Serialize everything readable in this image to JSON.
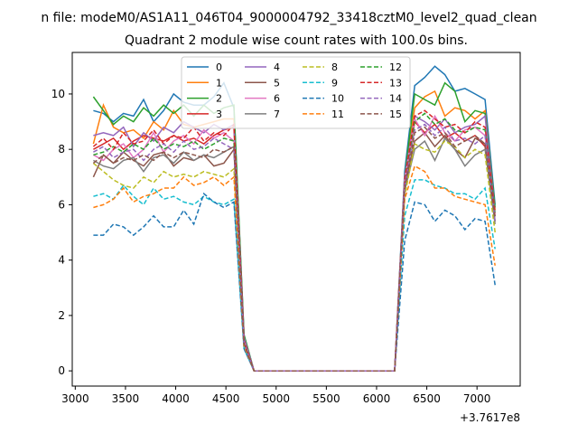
{
  "chart_data": {
    "type": "line",
    "suptitle": "n file: modeM0/AS1A11_046T04_9000004792_33418cztM0_level2_quad_clean",
    "title": "Quadrant 2 module wise count rates with 100.0s bins.",
    "xlabel": "",
    "ylabel": "",
    "x_offset_label": "+3.7617e8",
    "xlim": [
      2970,
      7430
    ],
    "ylim": [
      -0.55,
      11.5
    ],
    "x_ticks": [
      3000,
      3500,
      4000,
      4500,
      5000,
      5500,
      6000,
      6500,
      7000
    ],
    "y_ticks": [
      0,
      2,
      4,
      6,
      8,
      10
    ],
    "grid": false,
    "legend": {
      "placement": "top-center",
      "columns": 4
    },
    "x": [
      3180,
      3280,
      3380,
      3480,
      3580,
      3680,
      3780,
      3880,
      3980,
      4080,
      4180,
      4280,
      4380,
      4480,
      4580,
      4680,
      4780,
      4880,
      4980,
      5080,
      5180,
      5280,
      5380,
      5480,
      5580,
      5680,
      5780,
      5880,
      5980,
      6080,
      6180,
      6280,
      6380,
      6480,
      6580,
      6680,
      6780,
      6880,
      6980,
      7080,
      7180
    ],
    "series": [
      {
        "name": "0",
        "color": "#1f77b4",
        "dash": "solid",
        "values": [
          9.4,
          9.3,
          9.0,
          9.3,
          9.2,
          9.8,
          9.0,
          9.4,
          10.0,
          9.7,
          9.6,
          9.6,
          9.9,
          10.4,
          9.5,
          1.3,
          0,
          0,
          0,
          0,
          0,
          0,
          0,
          0,
          0,
          0,
          0,
          0,
          0,
          0,
          0,
          7.2,
          10.3,
          10.6,
          11.0,
          10.7,
          10.1,
          10.2,
          10.0,
          9.8,
          6.0
        ]
      },
      {
        "name": "1",
        "color": "#ff7f0e",
        "dash": "solid",
        "values": [
          8.2,
          9.6,
          8.8,
          8.6,
          8.7,
          8.4,
          9.0,
          8.7,
          9.4,
          8.9,
          8.8,
          8.9,
          9.0,
          9.1,
          9.1,
          1.2,
          0,
          0,
          0,
          0,
          0,
          0,
          0,
          0,
          0,
          0,
          0,
          0,
          0,
          0,
          0,
          7.0,
          9.5,
          9.9,
          10.1,
          9.2,
          9.5,
          9.4,
          9.1,
          9.4,
          5.8
        ]
      },
      {
        "name": "2",
        "color": "#2ca02c",
        "dash": "solid",
        "values": [
          9.9,
          9.4,
          8.9,
          9.2,
          9.0,
          9.5,
          9.2,
          9.6,
          9.3,
          9.6,
          9.2,
          9.6,
          9.3,
          9.5,
          9.6,
          1.3,
          0,
          0,
          0,
          0,
          0,
          0,
          0,
          0,
          0,
          0,
          0,
          0,
          0,
          0,
          0,
          7.0,
          10.0,
          9.8,
          9.6,
          10.4,
          10.1,
          9.0,
          9.4,
          9.3,
          5.9
        ]
      },
      {
        "name": "3",
        "color": "#d62728",
        "dash": "solid",
        "values": [
          8.0,
          8.2,
          8.4,
          8.0,
          8.3,
          8.5,
          8.4,
          8.3,
          8.5,
          8.3,
          8.4,
          8.2,
          8.5,
          8.7,
          8.8,
          1.1,
          0,
          0,
          0,
          0,
          0,
          0,
          0,
          0,
          0,
          0,
          0,
          0,
          0,
          0,
          0,
          6.8,
          9.0,
          8.6,
          8.9,
          8.4,
          8.6,
          8.3,
          8.5,
          8.1,
          5.6
        ]
      },
      {
        "name": "4",
        "color": "#9467bd",
        "dash": "solid",
        "values": [
          8.5,
          8.6,
          8.5,
          8.8,
          8.1,
          8.6,
          8.3,
          8.8,
          8.6,
          9.0,
          8.8,
          8.6,
          8.9,
          8.7,
          8.9,
          1.2,
          0,
          0,
          0,
          0,
          0,
          0,
          0,
          0,
          0,
          0,
          0,
          0,
          0,
          0,
          0,
          7.0,
          9.2,
          9.0,
          8.7,
          9.1,
          8.6,
          8.8,
          8.9,
          9.2,
          5.7
        ]
      },
      {
        "name": "5",
        "color": "#8c564b",
        "dash": "solid",
        "values": [
          7.0,
          7.8,
          7.5,
          7.9,
          7.6,
          7.4,
          7.8,
          7.9,
          7.4,
          7.7,
          7.6,
          7.8,
          7.4,
          7.5,
          8.0,
          1.0,
          0,
          0,
          0,
          0,
          0,
          0,
          0,
          0,
          0,
          0,
          0,
          0,
          0,
          0,
          0,
          6.6,
          8.3,
          8.6,
          8.1,
          8.5,
          8.0,
          7.7,
          8.4,
          8.2,
          5.4
        ]
      },
      {
        "name": "6",
        "color": "#e377c2",
        "dash": "solid",
        "values": [
          7.8,
          7.6,
          8.0,
          8.2,
          7.7,
          8.0,
          8.6,
          7.9,
          8.3,
          8.5,
          8.2,
          8.7,
          8.4,
          8.6,
          8.3,
          1.1,
          0,
          0,
          0,
          0,
          0,
          0,
          0,
          0,
          0,
          0,
          0,
          0,
          0,
          0,
          0,
          6.9,
          9.1,
          8.5,
          9.2,
          8.6,
          8.3,
          8.7,
          8.8,
          8.5,
          5.6
        ]
      },
      {
        "name": "7",
        "color": "#7f7f7f",
        "dash": "solid",
        "values": [
          7.6,
          7.4,
          7.3,
          7.6,
          7.7,
          7.2,
          7.7,
          7.8,
          7.5,
          7.9,
          7.6,
          7.8,
          7.7,
          7.9,
          8.1,
          1.0,
          0,
          0,
          0,
          0,
          0,
          0,
          0,
          0,
          0,
          0,
          0,
          0,
          0,
          0,
          0,
          6.5,
          8.0,
          8.3,
          7.6,
          8.4,
          8.0,
          7.4,
          7.8,
          8.0,
          5.3
        ]
      },
      {
        "name": "8",
        "color": "#bcbd22",
        "dash": "dashed",
        "values": [
          7.5,
          7.2,
          6.9,
          6.7,
          6.6,
          7.0,
          6.8,
          7.2,
          7.0,
          7.1,
          7.0,
          7.2,
          7.1,
          7.0,
          7.3,
          0.9,
          0,
          0,
          0,
          0,
          0,
          0,
          0,
          0,
          0,
          0,
          0,
          0,
          0,
          0,
          0,
          6.3,
          8.2,
          8.0,
          7.9,
          8.3,
          8.1,
          7.7,
          8.0,
          7.8,
          5.0
        ]
      },
      {
        "name": "9",
        "color": "#17becf",
        "dash": "dashed",
        "values": [
          6.3,
          6.4,
          6.2,
          6.7,
          6.3,
          6.0,
          6.6,
          6.2,
          6.3,
          6.1,
          6.0,
          6.3,
          6.1,
          6.0,
          6.2,
          0.8,
          0,
          0,
          0,
          0,
          0,
          0,
          0,
          0,
          0,
          0,
          0,
          0,
          0,
          0,
          0,
          5.6,
          6.9,
          6.9,
          6.7,
          6.6,
          6.4,
          6.4,
          6.2,
          6.6,
          4.4
        ]
      },
      {
        "name": "10",
        "color": "#1f77b4",
        "dash": "dashed",
        "values": [
          4.9,
          4.9,
          5.3,
          5.2,
          4.9,
          5.2,
          5.6,
          5.2,
          5.2,
          5.8,
          5.3,
          6.4,
          6.1,
          5.9,
          6.1,
          0.8,
          0,
          0,
          0,
          0,
          0,
          0,
          0,
          0,
          0,
          0,
          0,
          0,
          0,
          0,
          0,
          4.7,
          6.1,
          6.0,
          5.4,
          5.8,
          5.6,
          5.1,
          5.5,
          5.4,
          3.1
        ]
      },
      {
        "name": "11",
        "color": "#ff7f0e",
        "dash": "dashed",
        "values": [
          5.9,
          6.0,
          6.2,
          6.6,
          6.1,
          6.3,
          6.4,
          6.6,
          6.6,
          7.0,
          6.7,
          6.8,
          7.0,
          6.7,
          7.0,
          0.9,
          0,
          0,
          0,
          0,
          0,
          0,
          0,
          0,
          0,
          0,
          0,
          0,
          0,
          0,
          0,
          6.2,
          7.4,
          7.2,
          6.6,
          6.6,
          6.3,
          6.2,
          6.1,
          6.0,
          3.8
        ]
      },
      {
        "name": "12",
        "color": "#2ca02c",
        "dash": "dashed",
        "values": [
          7.8,
          7.9,
          8.1,
          7.9,
          8.2,
          8.0,
          8.4,
          8.0,
          8.2,
          8.1,
          8.3,
          8.0,
          8.2,
          8.4,
          8.3,
          1.0,
          0,
          0,
          0,
          0,
          0,
          0,
          0,
          0,
          0,
          0,
          0,
          0,
          0,
          0,
          0,
          6.8,
          9.0,
          9.3,
          8.9,
          9.1,
          8.7,
          8.6,
          8.8,
          8.7,
          5.6
        ]
      },
      {
        "name": "13",
        "color": "#d62728",
        "dash": "dashed",
        "values": [
          8.1,
          8.4,
          8.0,
          8.6,
          8.2,
          8.3,
          8.7,
          8.2,
          8.5,
          8.4,
          8.8,
          8.3,
          8.6,
          8.5,
          8.9,
          1.1,
          0,
          0,
          0,
          0,
          0,
          0,
          0,
          0,
          0,
          0,
          0,
          0,
          0,
          0,
          0,
          6.9,
          9.2,
          9.4,
          9.1,
          8.8,
          8.9,
          8.6,
          9.0,
          8.8,
          5.7
        ]
      },
      {
        "name": "14",
        "color": "#9467bd",
        "dash": "dashed",
        "values": [
          7.9,
          8.1,
          7.7,
          7.9,
          8.0,
          7.6,
          8.0,
          8.2,
          7.9,
          8.3,
          8.0,
          8.1,
          8.4,
          8.2,
          8.0,
          1.0,
          0,
          0,
          0,
          0,
          0,
          0,
          0,
          0,
          0,
          0,
          0,
          0,
          0,
          0,
          0,
          6.7,
          8.7,
          8.9,
          8.5,
          8.8,
          8.3,
          8.4,
          8.2,
          8.5,
          5.4
        ]
      },
      {
        "name": "15",
        "color": "#8c564b",
        "dash": "dashed",
        "values": [
          7.5,
          7.8,
          7.5,
          7.7,
          7.6,
          7.8,
          7.6,
          7.9,
          7.7,
          7.9,
          7.8,
          7.7,
          8.0,
          7.9,
          8.1,
          1.0,
          0,
          0,
          0,
          0,
          0,
          0,
          0,
          0,
          0,
          0,
          0,
          0,
          0,
          0,
          0,
          6.6,
          8.6,
          8.8,
          8.4,
          8.6,
          8.1,
          8.3,
          8.5,
          8.2,
          5.5
        ]
      }
    ]
  }
}
